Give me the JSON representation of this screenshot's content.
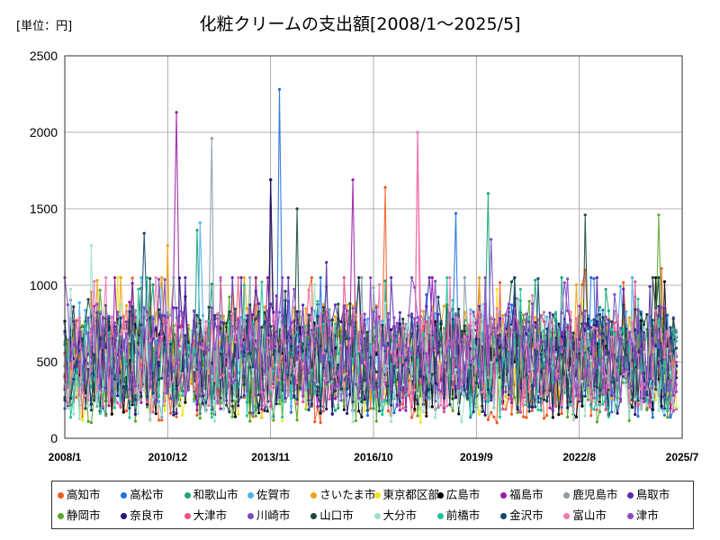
{
  "unit_label": "[単位：円]",
  "chart_data": {
    "type": "line",
    "title": "化粧クリームの支出額[2008/1～2025/5]",
    "xlabel": "",
    "ylabel": "",
    "ylim": [
      0,
      2500
    ],
    "yticks": [
      0,
      500,
      1000,
      1500,
      2000,
      2500
    ],
    "xlim": [
      "2008/1",
      "2025/7"
    ],
    "xticks": [
      "2008/1",
      "2010/12",
      "2013/11",
      "2016/10",
      "2019/9",
      "2022/8",
      "2025/7"
    ],
    "grid": true,
    "legend_position": "bottom",
    "series": [
      {
        "name": "高知市",
        "color": "#f15a22",
        "peaks": [
          [
            "2017/2",
            1640
          ],
          [
            "2022/10",
            1100
          ],
          [
            "2024/12",
            1110
          ]
        ]
      },
      {
        "name": "高松市",
        "color": "#1f6fe0",
        "peaks": [
          [
            "2014/2",
            2280
          ],
          [
            "2019/2",
            1470
          ]
        ]
      },
      {
        "name": "和歌山市",
        "color": "#1ba37a",
        "peaks": [
          [
            "2011/10",
            1360
          ],
          [
            "2020/1",
            1600
          ]
        ]
      },
      {
        "name": "佐賀市",
        "color": "#4ab4ea",
        "peaks": [
          [
            "2011/11",
            1410
          ]
        ]
      },
      {
        "name": "さいたま市",
        "color": "#f0a312",
        "peaks": [
          [
            "2010/12",
            1260
          ]
        ]
      },
      {
        "name": "東京都区部",
        "color": "#f3e21c",
        "peaks": [
          [
            "2013/3",
            700
          ]
        ]
      },
      {
        "name": "広島市",
        "color": "#000000",
        "peaks": [
          [
            "2013/11",
            1690
          ]
        ]
      },
      {
        "name": "福島市",
        "color": "#9b1ca6",
        "peaks": [
          [
            "2011/3",
            2130
          ],
          [
            "2016/3",
            1690
          ]
        ]
      },
      {
        "name": "鹿児島市",
        "color": "#8a9aab",
        "peaks": [
          [
            "2012/3",
            1960
          ]
        ]
      },
      {
        "name": "鳥取市",
        "color": "#5b2ab0",
        "peaks": [
          [
            "2015/6",
            1150
          ]
        ]
      },
      {
        "name": "静岡市",
        "color": "#58a62b",
        "peaks": [
          [
            "2024/11",
            1460
          ]
        ]
      },
      {
        "name": "奈良市",
        "color": "#2a0f7a",
        "peaks": [
          [
            "2013/11",
            1690
          ]
        ]
      },
      {
        "name": "大津市",
        "color": "#e8518e",
        "peaks": [
          [
            "2018/1",
            2000
          ]
        ]
      },
      {
        "name": "川崎市",
        "color": "#7c4cc2",
        "peaks": [
          [
            "2020/2",
            1300
          ]
        ]
      },
      {
        "name": "山口市",
        "color": "#1b4a3a",
        "peaks": [
          [
            "2014/8",
            1500
          ],
          [
            "2022/10",
            1460
          ]
        ]
      },
      {
        "name": "大分市",
        "color": "#9fe0cf",
        "peaks": [
          [
            "2008/10",
            1260
          ]
        ]
      },
      {
        "name": "前橋市",
        "color": "#21c39a",
        "peaks": [
          [
            "2013/2",
            1000
          ]
        ]
      },
      {
        "name": "金沢市",
        "color": "#14466b",
        "peaks": [
          [
            "2010/4",
            1340
          ]
        ]
      },
      {
        "name": "富山市",
        "color": "#f07ab0",
        "peaks": [
          [
            "2018/1",
            2000
          ]
        ]
      },
      {
        "name": "津市",
        "color": "#8b47c8",
        "peaks": [
          [
            "2016/9",
            1050
          ]
        ]
      }
    ]
  }
}
